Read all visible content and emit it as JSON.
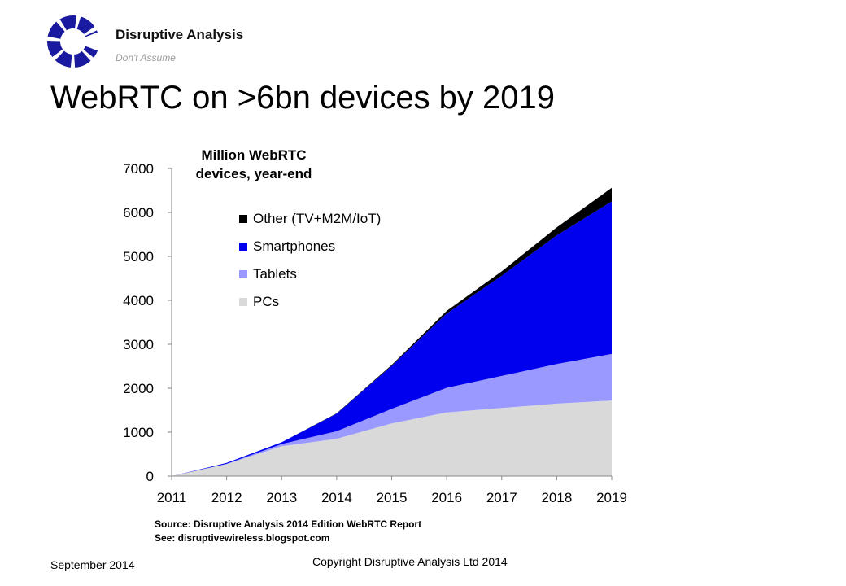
{
  "header": {
    "brand": "Disruptive Analysis",
    "tagline": "Don't Assume",
    "title": "WebRTC on >6bn devices by 2019"
  },
  "chart_data": {
    "type": "area",
    "stacked": true,
    "title_lines": [
      "Million  WebRTC",
      "devices, year-end"
    ],
    "xlabel": "",
    "ylabel": "",
    "ylim": [
      0,
      7000
    ],
    "yticks": [
      0,
      1000,
      2000,
      3000,
      4000,
      5000,
      6000,
      7000
    ],
    "categories": [
      "2011",
      "2012",
      "2013",
      "2014",
      "2015",
      "2016",
      "2017",
      "2018",
      "2019"
    ],
    "series": [
      {
        "name": "PCs",
        "color": "#d9d9d9",
        "values": [
          0,
          270,
          680,
          850,
          1200,
          1450,
          1550,
          1650,
          1720
        ]
      },
      {
        "name": "Tablets",
        "color": "#9999ff",
        "values": [
          0,
          10,
          50,
          170,
          330,
          560,
          730,
          900,
          1060
        ]
      },
      {
        "name": "Smartphones",
        "color": "#0000ee",
        "values": [
          0,
          20,
          40,
          400,
          980,
          1690,
          2280,
          2930,
          3470
        ]
      },
      {
        "name": "Other (TV+M2M/IoT)",
        "color": "#000000",
        "values": [
          0,
          0,
          0,
          10,
          20,
          60,
          100,
          180,
          310
        ]
      }
    ],
    "legend_order": [
      "Other (TV+M2M/IoT)",
      "Smartphones",
      "Tablets",
      "PCs"
    ],
    "legend_position": "top-left",
    "grid": false
  },
  "footer": {
    "source_line1": "Source: Disruptive Analysis  2014 Edition WebRTC Report",
    "source_line2": "See: disruptivewireless.blogspot.com",
    "date": "September 2014",
    "copyright": "Copyright  Disruptive Analysis Ltd 2014"
  }
}
